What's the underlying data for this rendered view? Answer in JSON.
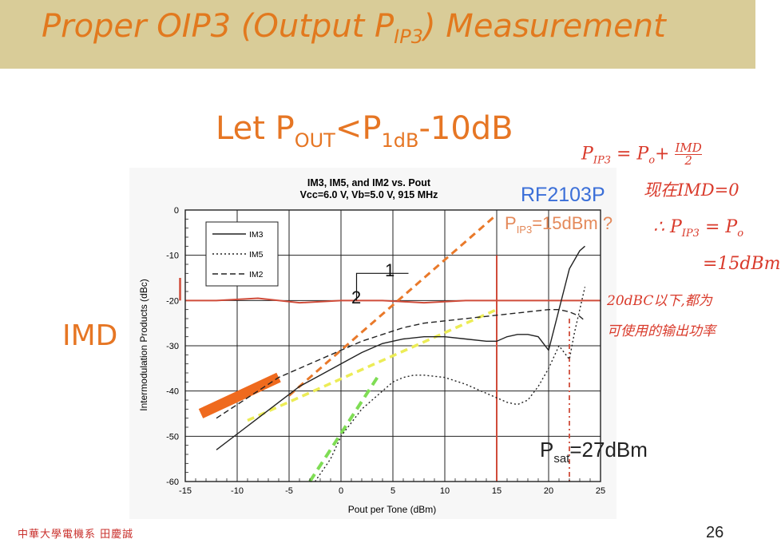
{
  "slide": {
    "title_main": "Proper OIP3 (Output P",
    "title_sub": "IP3",
    "title_end": ") Measurement",
    "condition_prefix": "Let P",
    "condition_sub1": "OUT",
    "condition_mid": "<P",
    "condition_sub2": "1dB",
    "condition_end": "-10dB",
    "imd_label": "IMD",
    "part_label": "RF2103P",
    "pip3_prefix": "P",
    "pip3_sub": "IP3",
    "pip3_value": "=15dBm ?",
    "psat_prefix": "P",
    "psat_sub": "sat",
    "psat_value": "=27dBm",
    "slope_rise": "2",
    "slope_run": "1",
    "footer_left": "中華大學電機系 田慶誠",
    "page_number": "26"
  },
  "handwriting": {
    "line1": "P",
    "line1_sub": "IP3",
    "line1_eq": "= P",
    "line1_sub2": "o",
    "line1_plus": "+",
    "line1_num": "IMD",
    "line1_den": "2",
    "line2": "现在IMD=0",
    "line3": "∴ P",
    "line3_sub": "IP3",
    "line3_eq": "= P",
    "line3_sub2": "o",
    "line4": "=15dBm",
    "line5": "20dBC以下,都为",
    "line6": "可使用的输出功率"
  },
  "chart_data": {
    "type": "line",
    "title": "IM3, IM5, and IM2 vs. Pout",
    "subtitle": "Vcc=6.0 V, Vb=5.0 V, 915 MHz",
    "xlabel": "Pout per Tone (dBm)",
    "ylabel": "Intermodulation Products (dBc)",
    "xlim": [
      -15,
      25
    ],
    "ylim": [
      -60,
      0
    ],
    "xticks": [
      -15,
      -10,
      -5,
      0,
      5,
      10,
      15,
      20,
      25
    ],
    "yticks": [
      0,
      -10,
      -20,
      -30,
      -40,
      -50,
      -60
    ],
    "grid": true,
    "legend_position": "top-left",
    "series": [
      {
        "name": "IM3",
        "style": "solid",
        "x": [
          -12,
          -10,
          -8,
          -6,
          -4,
          -2,
          0,
          2,
          4,
          6,
          8,
          10,
          12,
          14,
          15,
          16,
          17,
          18,
          19,
          20,
          21,
          22,
          23,
          23.5
        ],
        "y": [
          -53,
          -49.5,
          -46,
          -42.5,
          -39,
          -36.5,
          -34,
          -31.5,
          -29.5,
          -28.5,
          -28,
          -28,
          -28.5,
          -29,
          -29,
          -28,
          -27.5,
          -27.5,
          -28,
          -31,
          -22,
          -13,
          -9,
          -8
        ]
      },
      {
        "name": "IM5",
        "style": "dotted",
        "x": [
          -2.5,
          -1,
          0,
          1,
          2,
          3,
          4,
          5,
          6,
          7,
          8,
          10,
          12,
          14,
          16,
          17,
          18,
          19,
          20,
          21,
          22,
          22.5,
          23,
          23.5
        ],
        "y": [
          -60,
          -55,
          -50,
          -47,
          -44,
          -42,
          -40,
          -38,
          -37,
          -36.5,
          -36.5,
          -37,
          -38.5,
          -40.5,
          -42.5,
          -43,
          -42,
          -39,
          -35,
          -30,
          -33,
          -27,
          -22,
          -17
        ]
      },
      {
        "name": "IM2",
        "style": "dashed",
        "x": [
          -12,
          -10,
          -8,
          -6,
          -4,
          -2,
          0,
          2,
          4,
          6,
          8,
          10,
          12,
          14,
          16,
          18,
          20,
          21,
          22,
          23,
          23.5
        ],
        "y": [
          -46,
          -43,
          -40,
          -37,
          -35,
          -33,
          -31,
          -29,
          -27.5,
          -26,
          -25,
          -24.5,
          -24,
          -23.5,
          -23,
          -22.5,
          -22,
          -22,
          -22.5,
          -23.5,
          -24.5
        ]
      }
    ]
  },
  "annotations": {
    "colors": {
      "orange_dashed": "#e9792a",
      "yellow_dashed": "#ecec56",
      "green_dashed": "#7fdd55",
      "red_level": "#d04c3a",
      "orange_band": "#ef6a1e"
    }
  }
}
